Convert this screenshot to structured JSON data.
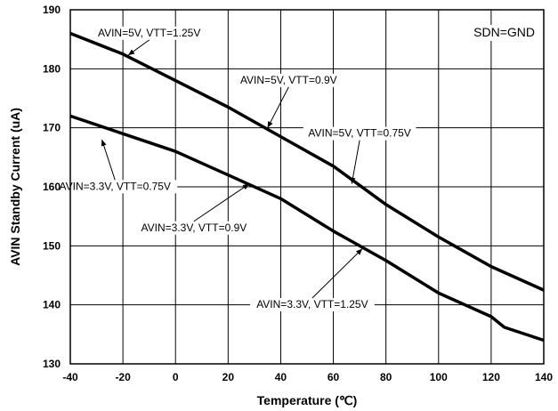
{
  "chart_data": {
    "type": "line",
    "title": "",
    "xlabel": "Temperature (℃)",
    "ylabel": "AVIN Standby Current (uA)",
    "xlim": [
      -40,
      140
    ],
    "ylim": [
      130,
      190
    ],
    "x_ticks": [
      "-40",
      "-20",
      "0",
      "20",
      "40",
      "60",
      "80",
      "100",
      "120",
      "140"
    ],
    "y_ticks": [
      "130",
      "140",
      "150",
      "160",
      "170",
      "180",
      "190"
    ],
    "grid": true,
    "condition_label": "SDN=GND",
    "series": [
      {
        "name": "AVIN=5V",
        "color": "#000000",
        "x": [
          -40,
          -20,
          0,
          20,
          40,
          60,
          80,
          100,
          120,
          140
        ],
        "y": [
          186,
          182.5,
          178,
          173.5,
          168.5,
          163.5,
          157,
          151.5,
          146.5,
          142.5
        ]
      },
      {
        "name": "AVIN=3.3V",
        "color": "#000000",
        "x": [
          -40,
          -20,
          0,
          20,
          40,
          60,
          80,
          100,
          120,
          125,
          140
        ],
        "y": [
          172,
          169,
          166,
          162,
          158,
          152.5,
          147.5,
          142,
          138,
          136.2,
          134
        ]
      }
    ],
    "annotations": [
      {
        "text": "AVIN=5V, VTT=1.25V",
        "x": -10,
        "y": 185.5,
        "ax": -18,
        "ay": 182.3
      },
      {
        "text": "AVIN=5V, VTT=0.9V",
        "x": 43,
        "y": 177.5,
        "ax": 35,
        "ay": 170
      },
      {
        "text": "AVIN=5V, VTT=0.75V",
        "x": 70,
        "y": 168.5,
        "ax": 67,
        "ay": 160.5
      },
      {
        "text": "AVIN=3.3V, VTT=0.75V",
        "x": -23,
        "y": 159.5,
        "ax": -28,
        "ay": 168
      },
      {
        "text": "AVIN=3.3V, VTT=0.9V",
        "x": 7,
        "y": 152.5,
        "ax": 28,
        "ay": 160.5
      },
      {
        "text": "AVIN=3.3V, VTT=1.25V",
        "x": 52,
        "y": 139.5,
        "ax": 71,
        "ay": 149.5
      }
    ]
  }
}
